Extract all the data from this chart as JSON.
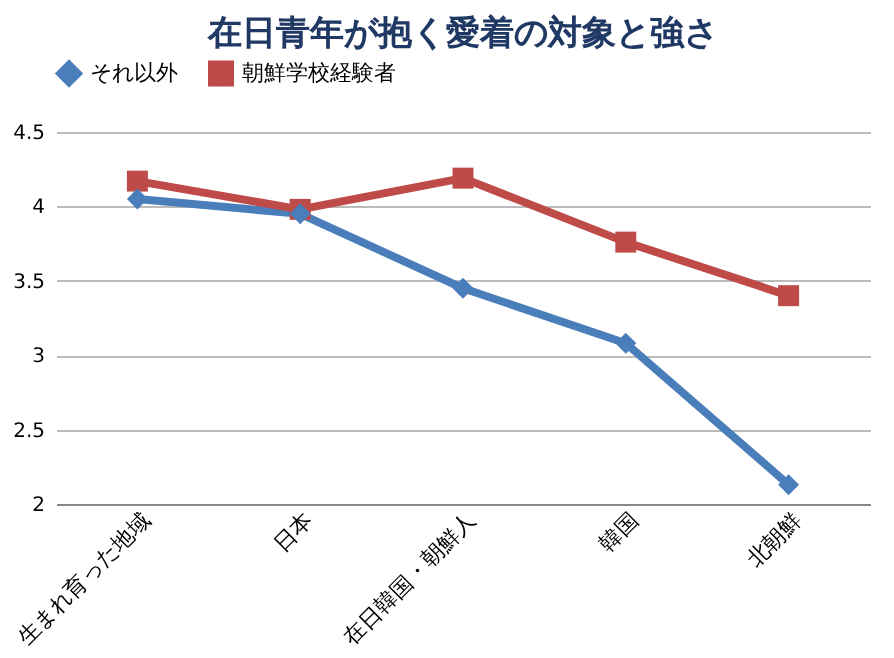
{
  "chart_data": {
    "type": "line",
    "title": "在日青年が抱く愛着の対象と強さ",
    "categories": [
      "生まれ育った地域",
      "日本",
      "在日韓国・朝鮮人",
      "韓国",
      "北朝鮮"
    ],
    "series": [
      {
        "name": "それ以外",
        "color": "#4a7ebb",
        "values": [
          4.05,
          3.95,
          3.45,
          3.08,
          2.13
        ],
        "marker": "diamond"
      },
      {
        "name": "朝鮮学校経験者",
        "color": "#be4b48",
        "values": [
          4.17,
          3.98,
          4.19,
          3.76,
          3.4
        ],
        "marker": "square"
      }
    ],
    "ylim": [
      2,
      4.5
    ],
    "yticks": [
      2,
      2.5,
      3,
      3.5,
      4,
      4.5
    ],
    "grid": "y",
    "legend": "top"
  }
}
